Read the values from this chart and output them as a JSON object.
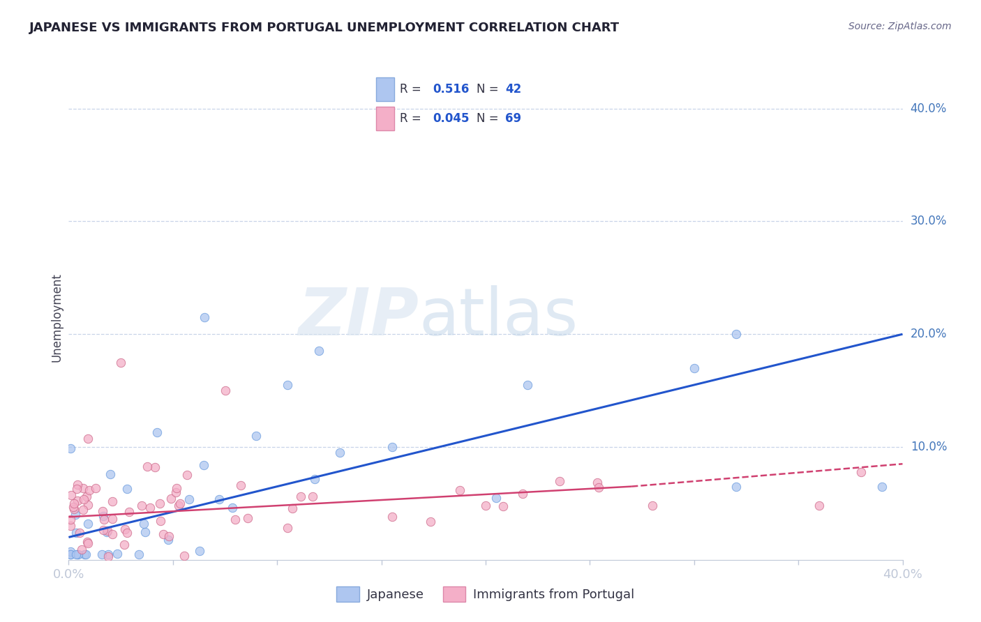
{
  "title": "JAPANESE VS IMMIGRANTS FROM PORTUGAL UNEMPLOYMENT CORRELATION CHART",
  "source": "Source: ZipAtlas.com",
  "ylabel": "Unemployment",
  "legend_label1": "Japanese",
  "legend_label2": "Immigrants from Portugal",
  "r1": 0.516,
  "n1": 42,
  "r2": 0.045,
  "n2": 69,
  "color1": "#aec6f0",
  "color2": "#f4afc8",
  "line_color1": "#2255cc",
  "line_color2": "#d04070",
  "background": "#ffffff",
  "grid_color": "#c8d4e8",
  "axis_color": "#4477bb",
  "title_color": "#222233",
  "source_color": "#666688",
  "ylabel_color": "#444455",
  "xlim": [
    0.0,
    0.4
  ],
  "ylim": [
    0.0,
    0.43
  ],
  "ytick_vals": [
    0.1,
    0.2,
    0.3,
    0.4
  ],
  "ytick_labels": [
    "10.0%",
    "20.0%",
    "30.0%",
    "40.0%"
  ],
  "trend1_x": [
    0.0,
    0.4
  ],
  "trend1_y": [
    0.02,
    0.2
  ],
  "trend2_x": [
    0.0,
    0.4
  ],
  "trend2_y": [
    0.038,
    0.085
  ]
}
